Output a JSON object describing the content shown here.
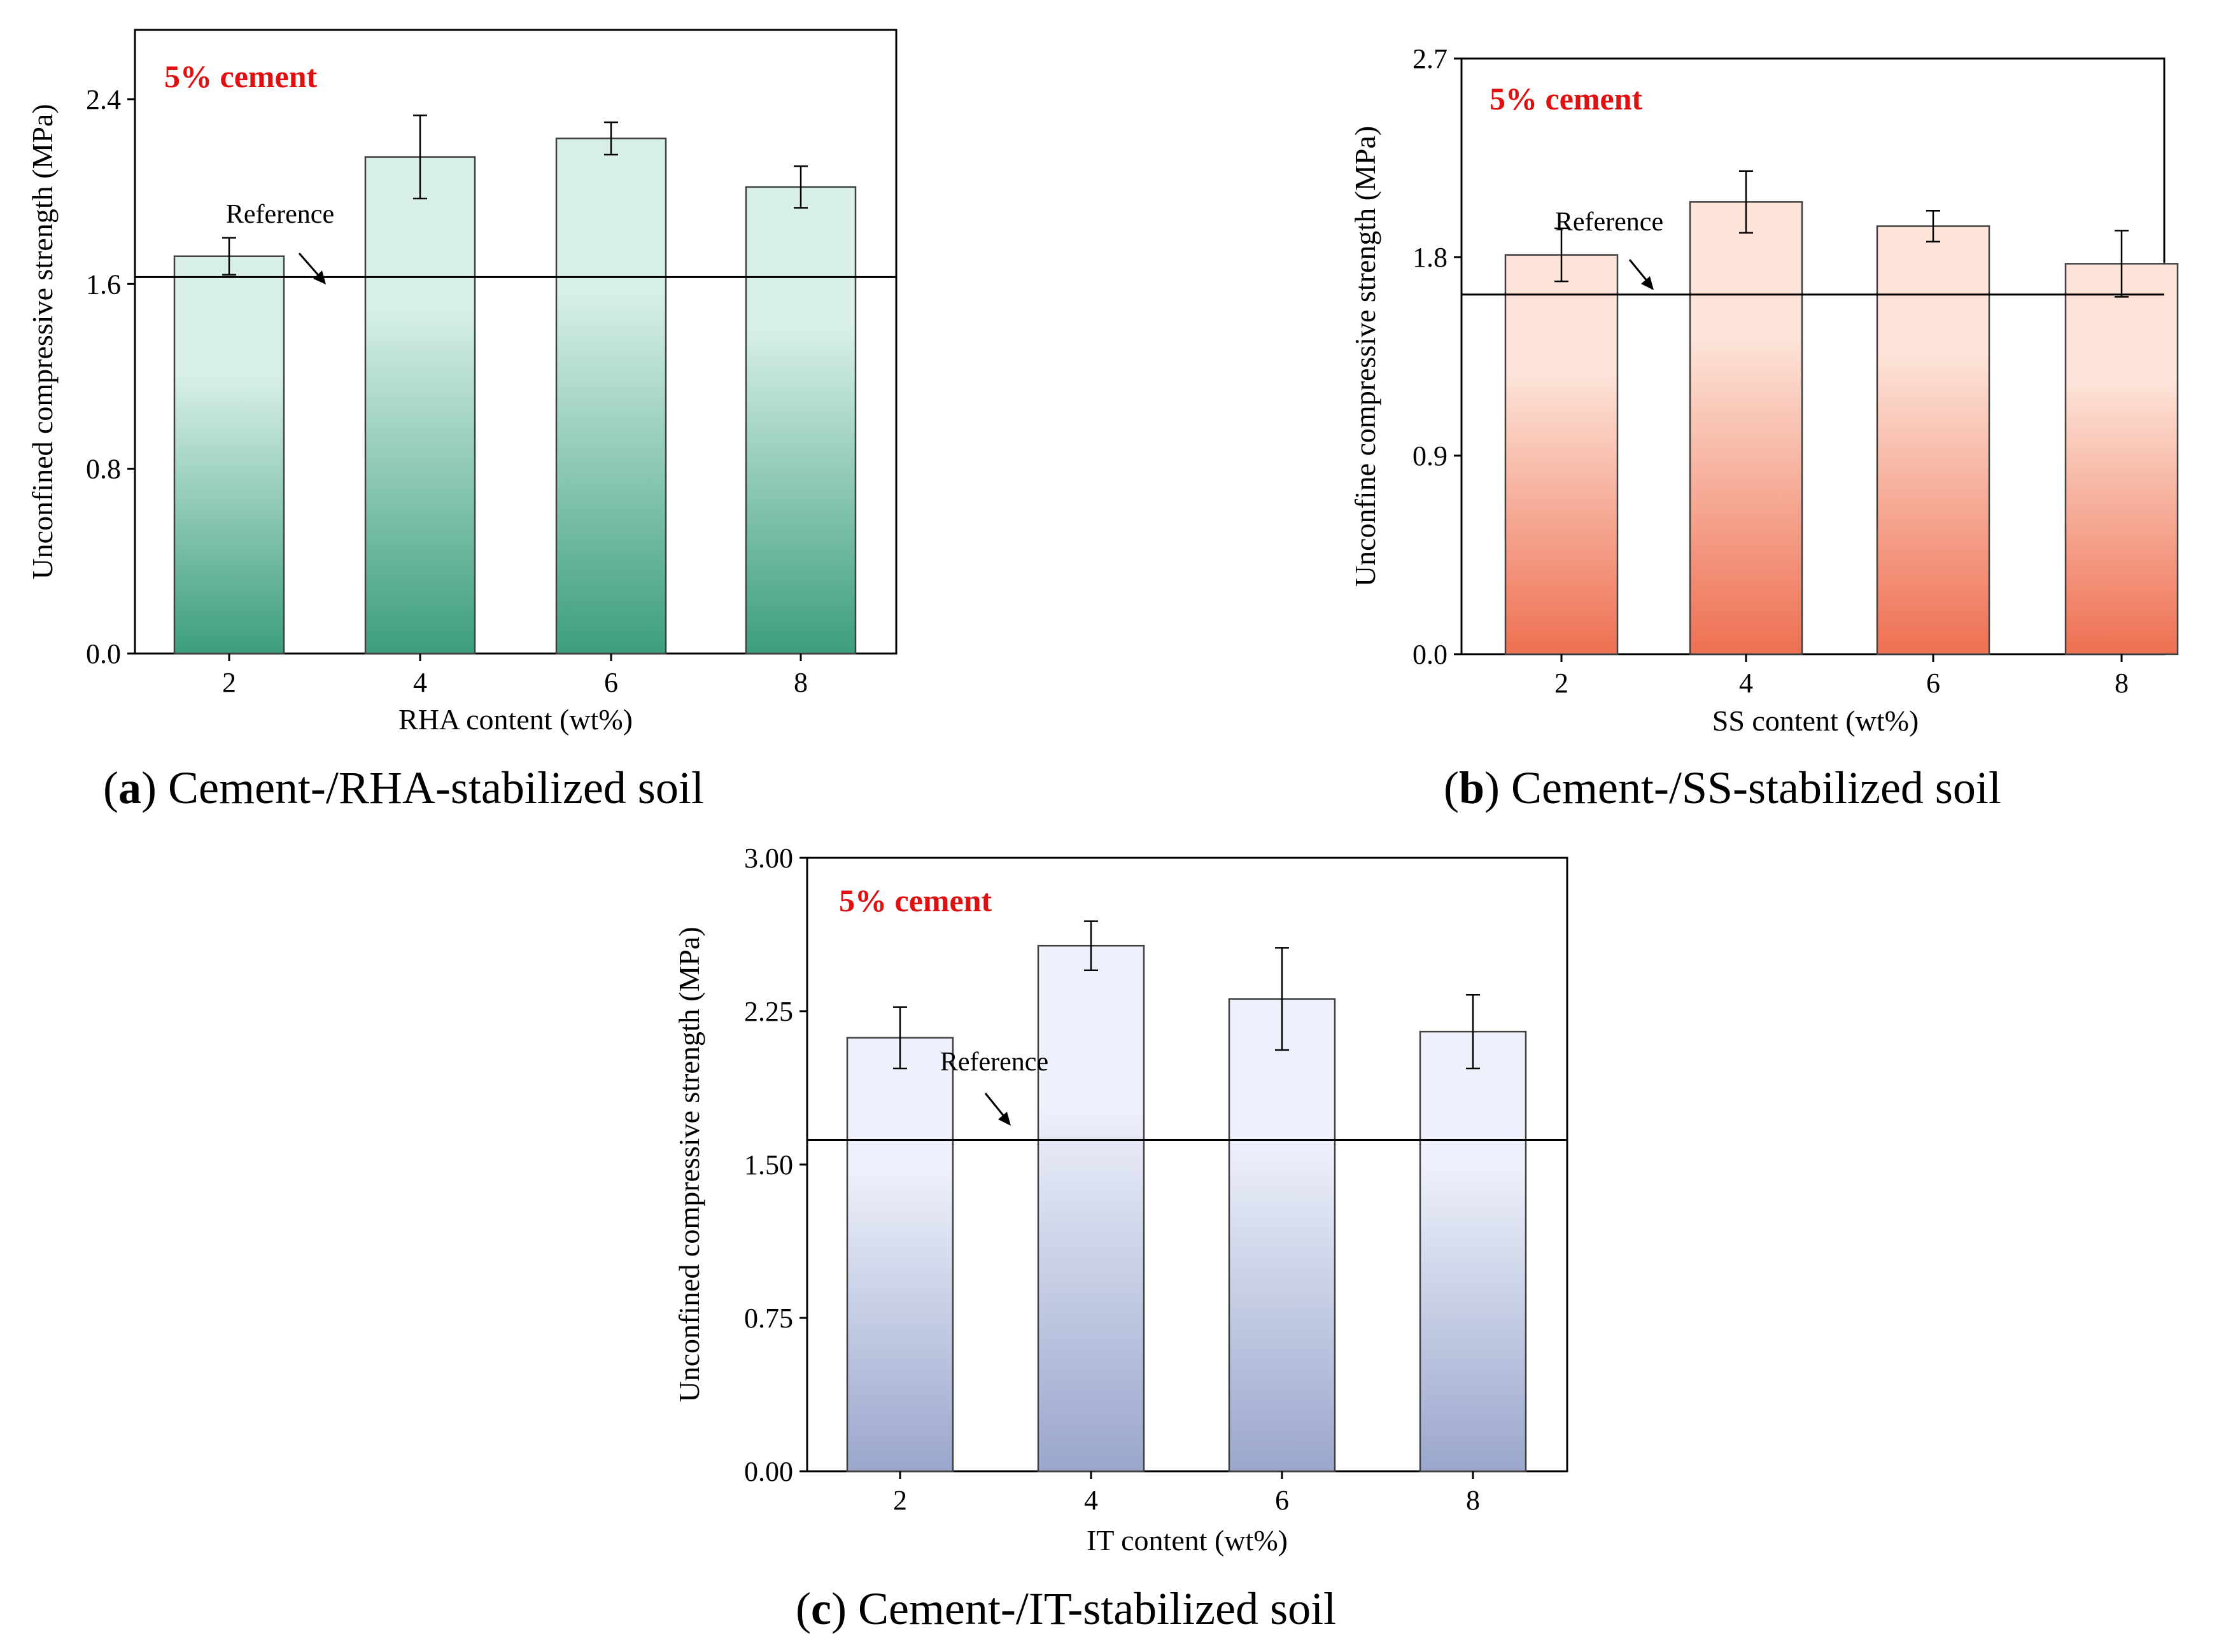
{
  "chart_data": [
    {
      "id": "a",
      "type": "bar",
      "annotation": "5% cement",
      "ylabel": "Unconfined compressive strength (MPa)",
      "xlabel": "RHA content (wt%)",
      "categories": [
        "2",
        "4",
        "6",
        "8"
      ],
      "values": [
        1.72,
        2.15,
        2.23,
        2.02
      ],
      "errors": [
        0.08,
        0.18,
        0.07,
        0.09
      ],
      "ylim": [
        0,
        2.7
      ],
      "yticks": [
        "0.0",
        "0.8",
        "1.6",
        "2.4"
      ],
      "reference_value": 1.63,
      "reference_label": "Reference",
      "caption_letter": "a",
      "caption_text": "Cement-/RHA-stabilized soil",
      "colors": {
        "bar_top": "#d8f0e6",
        "bar_bottom": "#3c9e7c"
      }
    },
    {
      "id": "b",
      "type": "bar",
      "annotation": "5% cement",
      "ylabel": "Unconfine compressive strength (MPa)",
      "xlabel": "SS content (wt%)",
      "categories": [
        "2",
        "4",
        "6",
        "8"
      ],
      "values": [
        1.81,
        2.05,
        1.94,
        1.77
      ],
      "errors": [
        0.12,
        0.14,
        0.07,
        0.15
      ],
      "ylim": [
        0,
        2.7
      ],
      "yticks": [
        "0.0",
        "0.9",
        "1.8",
        "2.7"
      ],
      "reference_value": 1.63,
      "reference_label": "Reference",
      "caption_letter": "b",
      "caption_text": "Cement-/SS-stabilized soil",
      "colors": {
        "bar_top": "#fde3d8",
        "bar_bottom": "#ee7052"
      }
    },
    {
      "id": "c",
      "type": "bar",
      "annotation": "5% cement",
      "ylabel": "Unconfined compressive strength (MPa)",
      "xlabel": "IT content (wt%)",
      "categories": [
        "2",
        "4",
        "6",
        "8"
      ],
      "values": [
        2.12,
        2.57,
        2.31,
        2.15
      ],
      "errors": [
        0.15,
        0.12,
        0.25,
        0.18
      ],
      "ylim": [
        0,
        3.0
      ],
      "yticks": [
        "0.00",
        "0.75",
        "1.50",
        "2.25",
        "3.00"
      ],
      "reference_value": 1.62,
      "reference_label": "Reference",
      "caption_letter": "c",
      "caption_text": "Cement-/IT-stabilized soil",
      "colors": {
        "bar_top": "#eef1fb",
        "bar_bottom": "#9aa6cc"
      }
    }
  ],
  "colors": {
    "annotation": "#e01010",
    "axis": "#000000",
    "bar_stroke": "#404040"
  }
}
